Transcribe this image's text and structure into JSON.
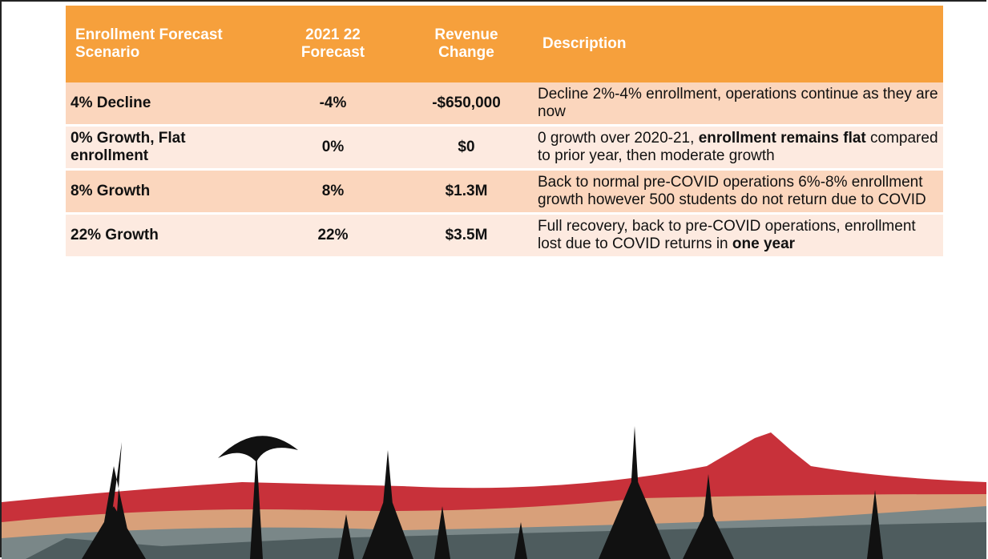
{
  "table": {
    "header": [
      "Enrollment Forecast Scenario",
      "2021 22 Forecast",
      "Revenue Change",
      "Description"
    ],
    "rows": [
      [
        "4% Decline",
        "-4%",
        "-$650,000",
        [
          {
            "text": "Decline 2%-4% enrollment, operations continue as they are now"
          }
        ]
      ],
      [
        "0% Growth, Flat enrollment",
        "0%",
        "$0",
        [
          {
            "text": "0 growth over 2020-21, "
          },
          {
            "text": "enrollment remains flat",
            "bold": true
          },
          {
            "text": " compared to prior year, then moderate growth"
          }
        ]
      ],
      [
        "8% Growth",
        "8%",
        "$1.3M",
        [
          {
            "text": "Back to normal pre-COVID operations 6%-8% enrollment growth however 500 students do not return due to COVID"
          }
        ]
      ],
      [
        "22% Growth",
        "22%",
        "$3.5M",
        [
          {
            "text": "Full recovery, back to pre-COVID operations, enrollment lost due to COVID returns in "
          },
          {
            "text": "one year",
            "bold": true
          }
        ]
      ]
    ]
  }
}
